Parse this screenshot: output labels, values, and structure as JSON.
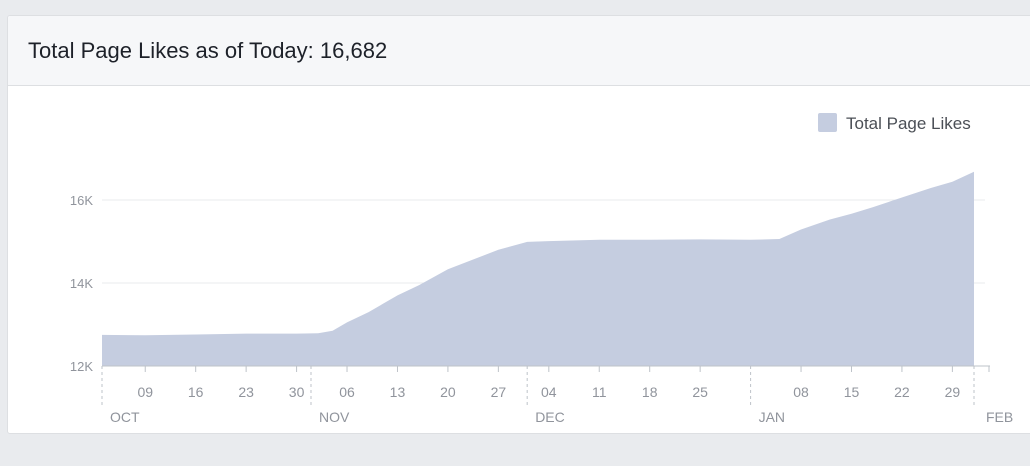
{
  "header": {
    "title": "Total Page Likes as of Today: 16,682"
  },
  "colors": {
    "area_fill": "#c5cde0",
    "axis_text": "#90949c",
    "grid": "#e9ebee",
    "tick": "#bec3c9"
  },
  "chart_data": {
    "type": "area",
    "title": "",
    "xlabel": "",
    "ylabel": "",
    "ylim": [
      12000,
      16700
    ],
    "yticks": [
      {
        "value": 12000,
        "label": "12K"
      },
      {
        "value": 14000,
        "label": "14K"
      },
      {
        "value": 16000,
        "label": "16K"
      }
    ],
    "xlim": [
      "2014-10-03",
      "2015-02-01"
    ],
    "xticks": [
      {
        "date": "2014-10-09",
        "label": "09"
      },
      {
        "date": "2014-10-16",
        "label": "16"
      },
      {
        "date": "2014-10-23",
        "label": "23"
      },
      {
        "date": "2014-10-30",
        "label": "30"
      },
      {
        "date": "2014-11-06",
        "label": "06"
      },
      {
        "date": "2014-11-13",
        "label": "13"
      },
      {
        "date": "2014-11-20",
        "label": "20"
      },
      {
        "date": "2014-11-27",
        "label": "27"
      },
      {
        "date": "2014-12-04",
        "label": "04"
      },
      {
        "date": "2014-12-11",
        "label": "11"
      },
      {
        "date": "2014-12-18",
        "label": "18"
      },
      {
        "date": "2014-12-25",
        "label": "25"
      },
      {
        "date": "2015-01-08",
        "label": "08"
      },
      {
        "date": "2015-01-15",
        "label": "15"
      },
      {
        "date": "2015-01-22",
        "label": "22"
      },
      {
        "date": "2015-01-29",
        "label": "29"
      }
    ],
    "months": [
      {
        "date": "2014-10-01",
        "label": "OCT"
      },
      {
        "date": "2014-11-01",
        "label": "NOV"
      },
      {
        "date": "2014-12-01",
        "label": "DEC"
      },
      {
        "date": "2015-01-01",
        "label": "JAN"
      },
      {
        "date": "2015-02-01",
        "label": "FEB"
      }
    ],
    "legend": {
      "position": "top-right"
    },
    "grid": true,
    "series": [
      {
        "name": "Total Page Likes",
        "points": [
          {
            "x": "2014-10-03",
            "y": 12750
          },
          {
            "x": "2014-10-09",
            "y": 12740
          },
          {
            "x": "2014-10-16",
            "y": 12760
          },
          {
            "x": "2014-10-23",
            "y": 12780
          },
          {
            "x": "2014-10-30",
            "y": 12780
          },
          {
            "x": "2014-11-02",
            "y": 12790
          },
          {
            "x": "2014-11-04",
            "y": 12850
          },
          {
            "x": "2014-11-06",
            "y": 13050
          },
          {
            "x": "2014-11-09",
            "y": 13300
          },
          {
            "x": "2014-11-13",
            "y": 13700
          },
          {
            "x": "2014-11-16",
            "y": 13950
          },
          {
            "x": "2014-11-20",
            "y": 14330
          },
          {
            "x": "2014-11-24",
            "y": 14600
          },
          {
            "x": "2014-11-27",
            "y": 14800
          },
          {
            "x": "2014-12-01",
            "y": 14990
          },
          {
            "x": "2014-12-04",
            "y": 15010
          },
          {
            "x": "2014-12-11",
            "y": 15040
          },
          {
            "x": "2014-12-18",
            "y": 15040
          },
          {
            "x": "2014-12-25",
            "y": 15050
          },
          {
            "x": "2015-01-01",
            "y": 15040
          },
          {
            "x": "2015-01-05",
            "y": 15060
          },
          {
            "x": "2015-01-08",
            "y": 15290
          },
          {
            "x": "2015-01-12",
            "y": 15530
          },
          {
            "x": "2015-01-15",
            "y": 15670
          },
          {
            "x": "2015-01-18",
            "y": 15830
          },
          {
            "x": "2015-01-22",
            "y": 16060
          },
          {
            "x": "2015-01-26",
            "y": 16290
          },
          {
            "x": "2015-01-29",
            "y": 16440
          },
          {
            "x": "2015-02-01",
            "y": 16682
          }
        ]
      }
    ]
  }
}
